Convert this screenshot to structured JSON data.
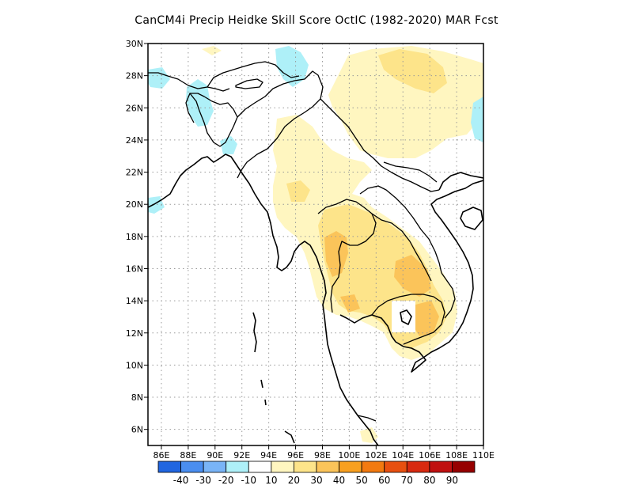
{
  "title": "CanCM4i Precip Heidke Skill Score OctIC (1982-2020) MAR Fcst",
  "x_axis": {
    "unit": "E",
    "ticks": [
      "86E",
      "88E",
      "90E",
      "92E",
      "94E",
      "96E",
      "98E",
      "100E",
      "102E",
      "104E",
      "106E",
      "108E",
      "110E"
    ],
    "range": [
      85,
      110
    ]
  },
  "y_axis": {
    "unit": "N",
    "ticks": [
      "6N",
      "8N",
      "10N",
      "12N",
      "14N",
      "16N",
      "18N",
      "20N",
      "22N",
      "24N",
      "26N",
      "28N",
      "30N"
    ],
    "range": [
      5,
      30
    ]
  },
  "grid": true,
  "colorbar": {
    "colors": [
      "#2166e0",
      "#4a8ef0",
      "#79b4f6",
      "#aef0f8",
      "#ffffff",
      "#fff6c0",
      "#fde48a",
      "#fbc45a",
      "#f8a020",
      "#f27a10",
      "#e85010",
      "#d82a10",
      "#c01010",
      "#960000"
    ],
    "labels": [
      "-40",
      "-30",
      "-20",
      "-10",
      "10",
      "20",
      "30",
      "40",
      "50",
      "60",
      "70",
      "80",
      "90"
    ]
  },
  "shading": {
    "regions": [
      {
        "level": "10",
        "color": "#fff6c0",
        "desc": "light yellow over Myanmar, Yunnan and interior Indochina"
      },
      {
        "level": "20",
        "color": "#fde48a",
        "desc": "yellow over Thailand and Cambodia"
      },
      {
        "level": "30",
        "color": "#fbc45a",
        "desc": "light orange over western Thailand and Laos/Cambodia"
      },
      {
        "level": "-10",
        "color": "#aef0f8",
        "desc": "light cyan over Bangladesh, Bhutan and south Tibet"
      }
    ]
  }
}
